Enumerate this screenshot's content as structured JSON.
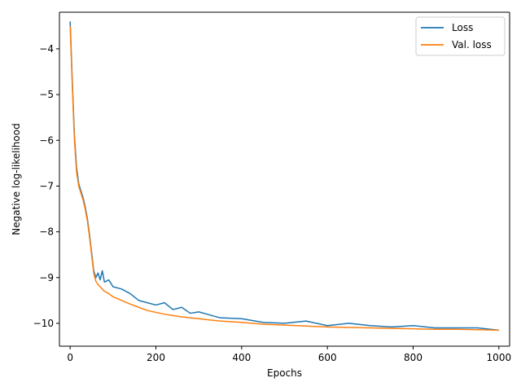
{
  "chart_data": {
    "type": "line",
    "title": "",
    "xlabel": "Epochs",
    "ylabel": "Negative log-likelihood",
    "xlim": [
      -25,
      1025
    ],
    "ylim": [
      -10.5,
      -3.2
    ],
    "xticks": [
      0,
      200,
      400,
      600,
      800,
      1000
    ],
    "yticks": [
      -10,
      -9,
      -8,
      -7,
      -6,
      -5,
      -4
    ],
    "xtick_labels": [
      "0",
      "200",
      "400",
      "600",
      "800",
      "1000"
    ],
    "ytick_labels": [
      "−10",
      "−9",
      "−8",
      "−7",
      "−6",
      "−5",
      "−4"
    ],
    "grid": false,
    "legend": "top-right",
    "series": [
      {
        "name": "Loss",
        "color": "#1f77b4",
        "x": [
          0,
          5,
          10,
          15,
          20,
          25,
          30,
          35,
          40,
          45,
          50,
          55,
          60,
          65,
          70,
          75,
          80,
          90,
          100,
          120,
          140,
          160,
          180,
          200,
          220,
          240,
          260,
          280,
          300,
          350,
          400,
          450,
          500,
          550,
          600,
          650,
          700,
          750,
          800,
          850,
          900,
          950,
          1000
        ],
        "values": [
          -3.4,
          -4.7,
          -5.9,
          -6.6,
          -6.95,
          -7.1,
          -7.25,
          -7.45,
          -7.7,
          -8.05,
          -8.45,
          -8.85,
          -9.0,
          -8.9,
          -9.05,
          -8.85,
          -9.1,
          -9.05,
          -9.2,
          -9.25,
          -9.35,
          -9.5,
          -9.55,
          -9.6,
          -9.55,
          -9.7,
          -9.65,
          -9.78,
          -9.75,
          -9.88,
          -9.9,
          -9.98,
          -10.0,
          -9.95,
          -10.05,
          -10.0,
          -10.05,
          -10.08,
          -10.05,
          -10.1,
          -10.1,
          -10.1,
          -10.15
        ]
      },
      {
        "name": "Val. loss",
        "color": "#ff7f0e",
        "x": [
          0,
          5,
          10,
          15,
          20,
          25,
          30,
          35,
          40,
          45,
          50,
          55,
          60,
          65,
          70,
          80,
          90,
          100,
          120,
          140,
          160,
          180,
          200,
          220,
          240,
          260,
          280,
          300,
          350,
          400,
          450,
          500,
          550,
          600,
          650,
          700,
          750,
          800,
          850,
          900,
          950,
          1000
        ],
        "values": [
          -3.5,
          -4.8,
          -6.0,
          -6.7,
          -7.0,
          -7.15,
          -7.3,
          -7.5,
          -7.75,
          -8.1,
          -8.5,
          -8.9,
          -9.08,
          -9.15,
          -9.2,
          -9.3,
          -9.35,
          -9.42,
          -9.5,
          -9.58,
          -9.65,
          -9.72,
          -9.76,
          -9.8,
          -9.83,
          -9.86,
          -9.88,
          -9.9,
          -9.95,
          -9.98,
          -10.02,
          -10.04,
          -10.06,
          -10.08,
          -10.09,
          -10.1,
          -10.11,
          -10.12,
          -10.13,
          -10.13,
          -10.14,
          -10.15
        ]
      }
    ]
  }
}
